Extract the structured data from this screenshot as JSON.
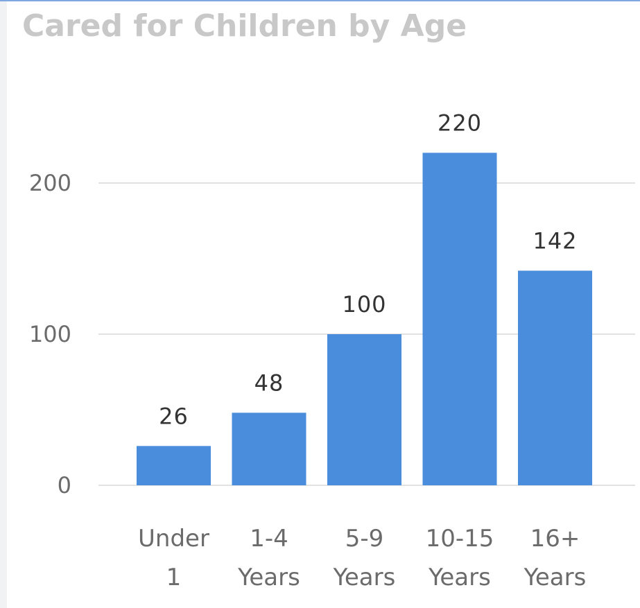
{
  "chart_data": {
    "type": "bar",
    "title": "Cared for Children by Age",
    "categories": [
      [
        "Under",
        "1"
      ],
      [
        "1-4",
        "Years"
      ],
      [
        "5-9",
        "Years"
      ],
      [
        "10-15",
        "Years"
      ],
      [
        "16+",
        "Years"
      ]
    ],
    "values": [
      26,
      48,
      100,
      220,
      142
    ],
    "data_labels": [
      "26",
      "48",
      "100",
      "220",
      "142"
    ],
    "y_ticks": [
      0,
      100,
      200
    ],
    "ylim": [
      0,
      240
    ],
    "xlabel": "",
    "ylabel": "",
    "grid": true,
    "bar_color": "#4a8ddc",
    "grid_color": "#e2e2e2",
    "title_color": "#c8c8c8"
  }
}
